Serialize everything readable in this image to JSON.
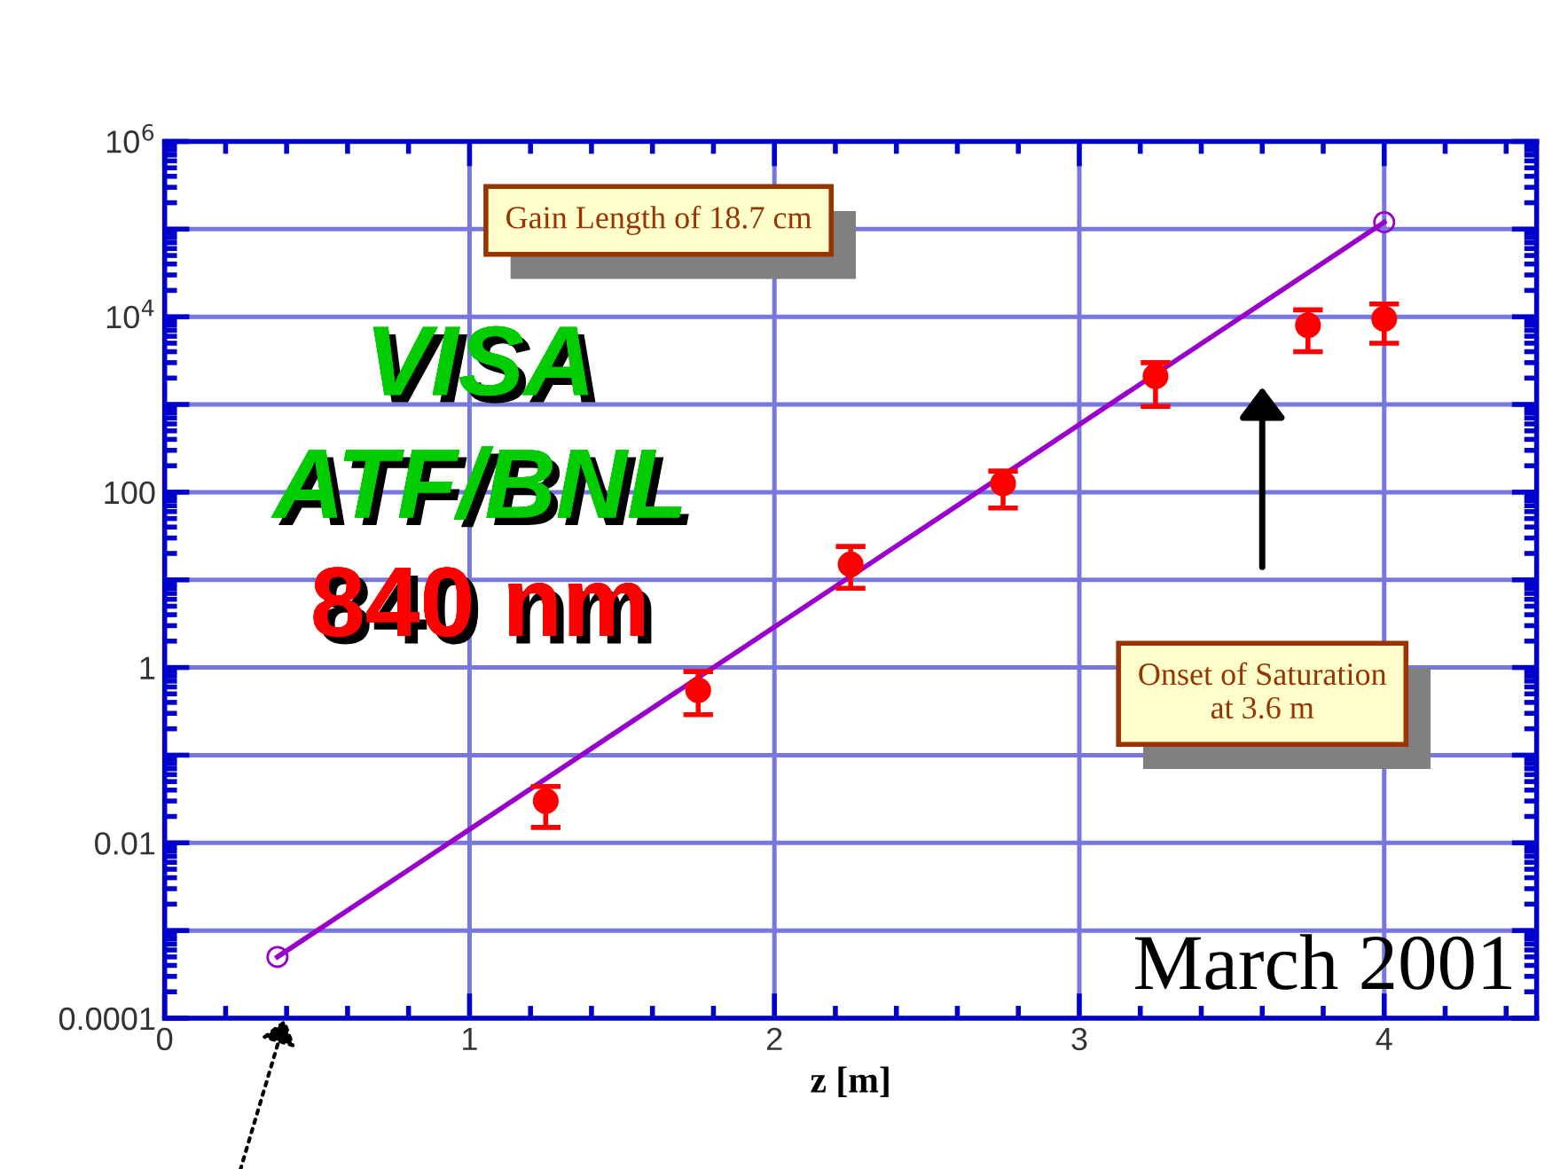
{
  "chart_data": {
    "type": "scatter",
    "xlabel": "z [m]",
    "series": [
      {
        "type": "line",
        "color": "#9900cc",
        "x": [
          0.37,
          4.0
        ],
        "values": [
          0.0005,
          120000
        ],
        "marker": "circle",
        "line_style": "solid"
      },
      {
        "color": "#ff0000",
        "x": [
          1.25,
          1.75,
          2.25,
          2.75,
          3.25,
          3.75,
          4.0
        ],
        "values": [
          0.03,
          0.55,
          15,
          126,
          2100,
          8000,
          9500
        ],
        "marker": "circle",
        "errors": [
          [
            0.015,
            0.044
          ],
          [
            0.29,
            0.9
          ],
          [
            8,
            24
          ],
          [
            66,
            174
          ],
          [
            950,
            3000
          ],
          [
            4000,
            12000
          ],
          [
            5000,
            14000
          ]
        ]
      }
    ],
    "log": "y",
    "xlim": [
      0,
      4.5
    ],
    "xticks": [
      0,
      1,
      2,
      3,
      4
    ],
    "ylim": [
      0.0001,
      1000000
    ],
    "yticks": [
      0.0001,
      {
        "value": 0.001,
        "label": null
      },
      0.01,
      {
        "value": 0.1,
        "label": null
      },
      1,
      {
        "value": 10,
        "label": null
      },
      100,
      {
        "value": 1000,
        "label": null
      },
      {
        "value": 10000,
        "label": "10$^{4}$"
      },
      {
        "value": 100000,
        "label": null
      },
      {
        "value": 1000000,
        "label": "10$^{6}$"
      }
    ],
    "grid": true,
    "annotations": [
      "Gain Length of 18.7 cm",
      "Onset of Saturation\nat 3.6 m",
      "VISA",
      "ATF/BNL",
      "840 nm",
      "March 2001"
    ]
  }
}
